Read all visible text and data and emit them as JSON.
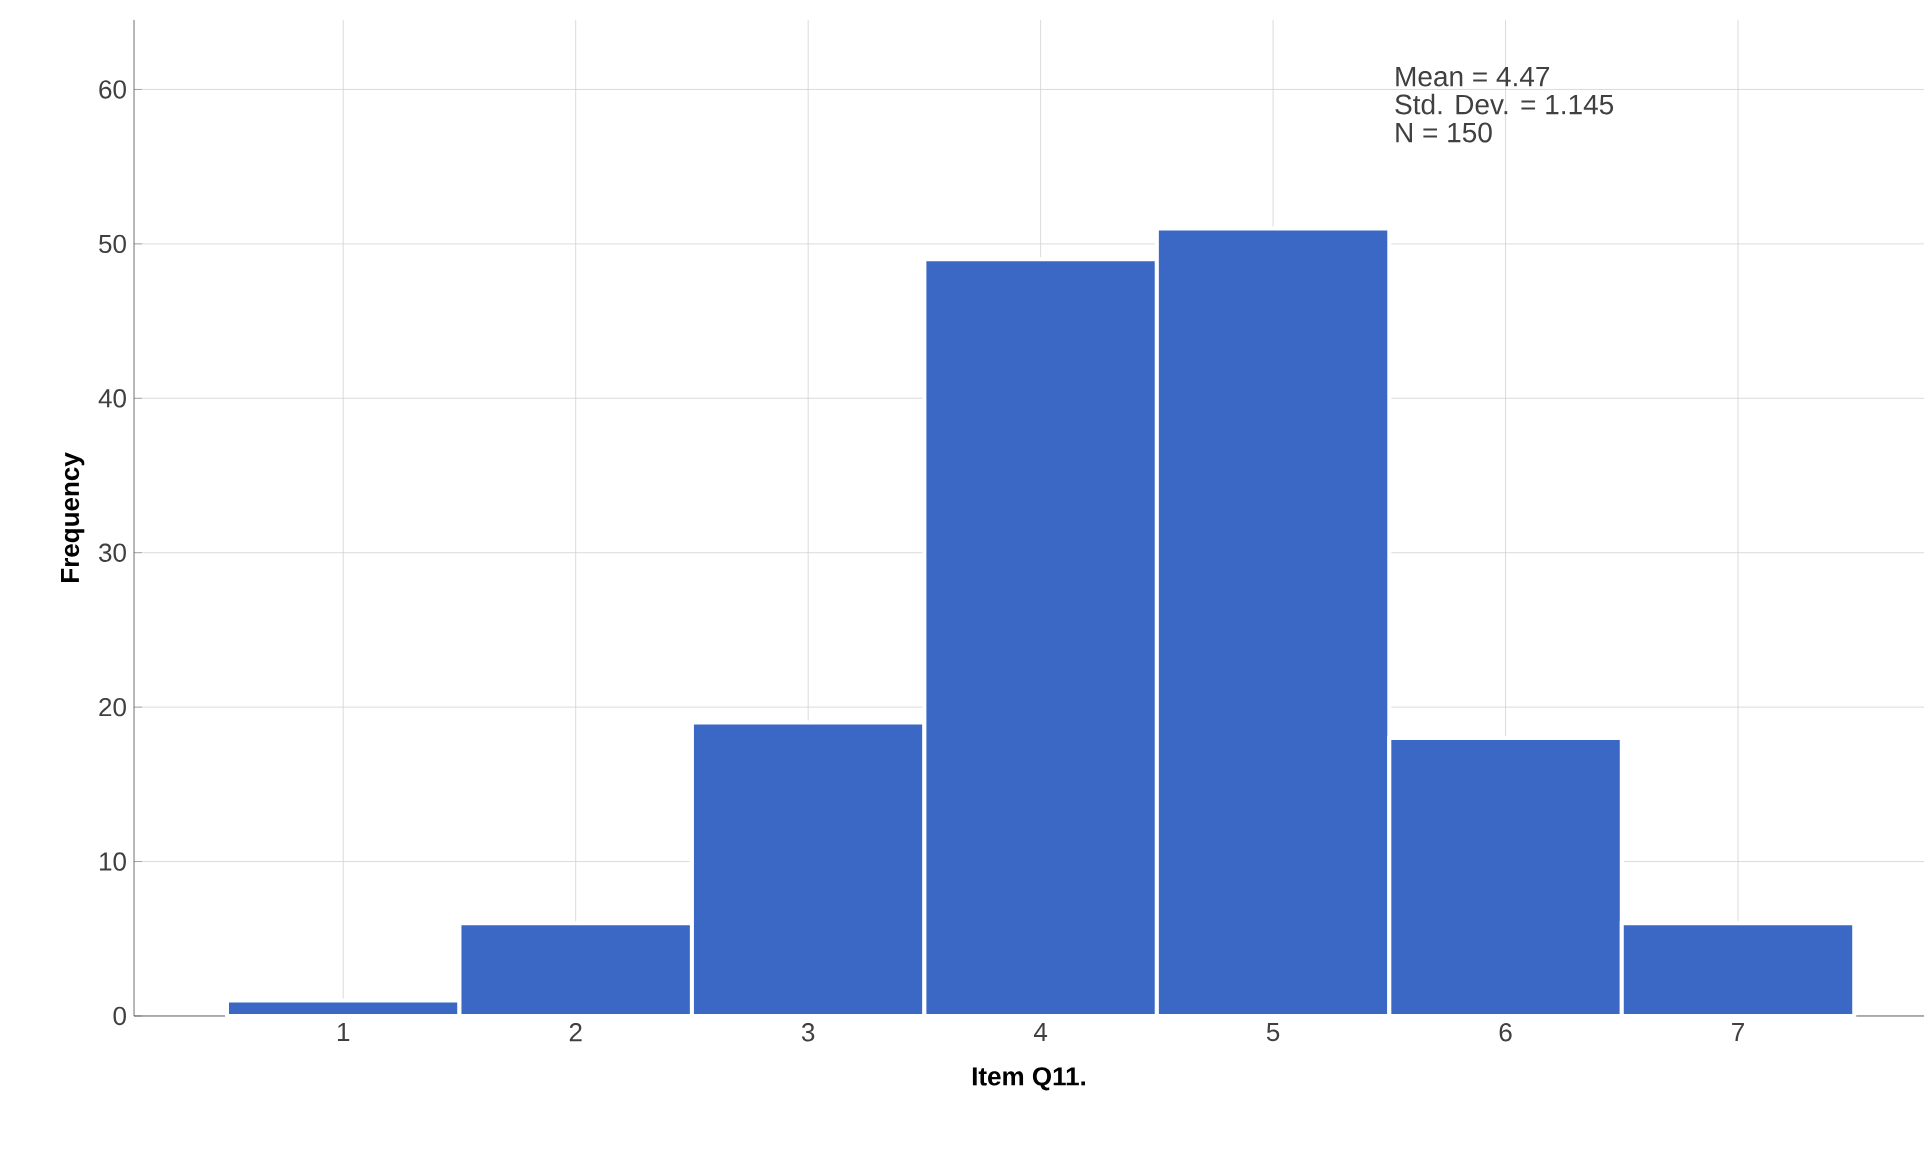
{
  "chart_data": {
    "type": "histogram",
    "xlabel": "Item Q11.",
    "ylabel": "Frequency",
    "bins": [
      0.5,
      1.5,
      2.5,
      3.5,
      4.5,
      5.5,
      6.5,
      7.5
    ],
    "values": [
      1,
      6,
      19,
      49,
      51,
      18,
      6
    ],
    "color": "#3a68c4",
    "xlim": [
      0.1,
      7.8
    ],
    "xticks": [
      1,
      2,
      3,
      4,
      5,
      6,
      7
    ],
    "ylim": [
      0,
      64.5
    ],
    "yticks": [
      0,
      10,
      20,
      30,
      40,
      50,
      60
    ],
    "grid": true,
    "annotations": [
      "Mean = 4.47",
      "Std. Dev. = 1.145",
      "N = 150"
    ]
  }
}
